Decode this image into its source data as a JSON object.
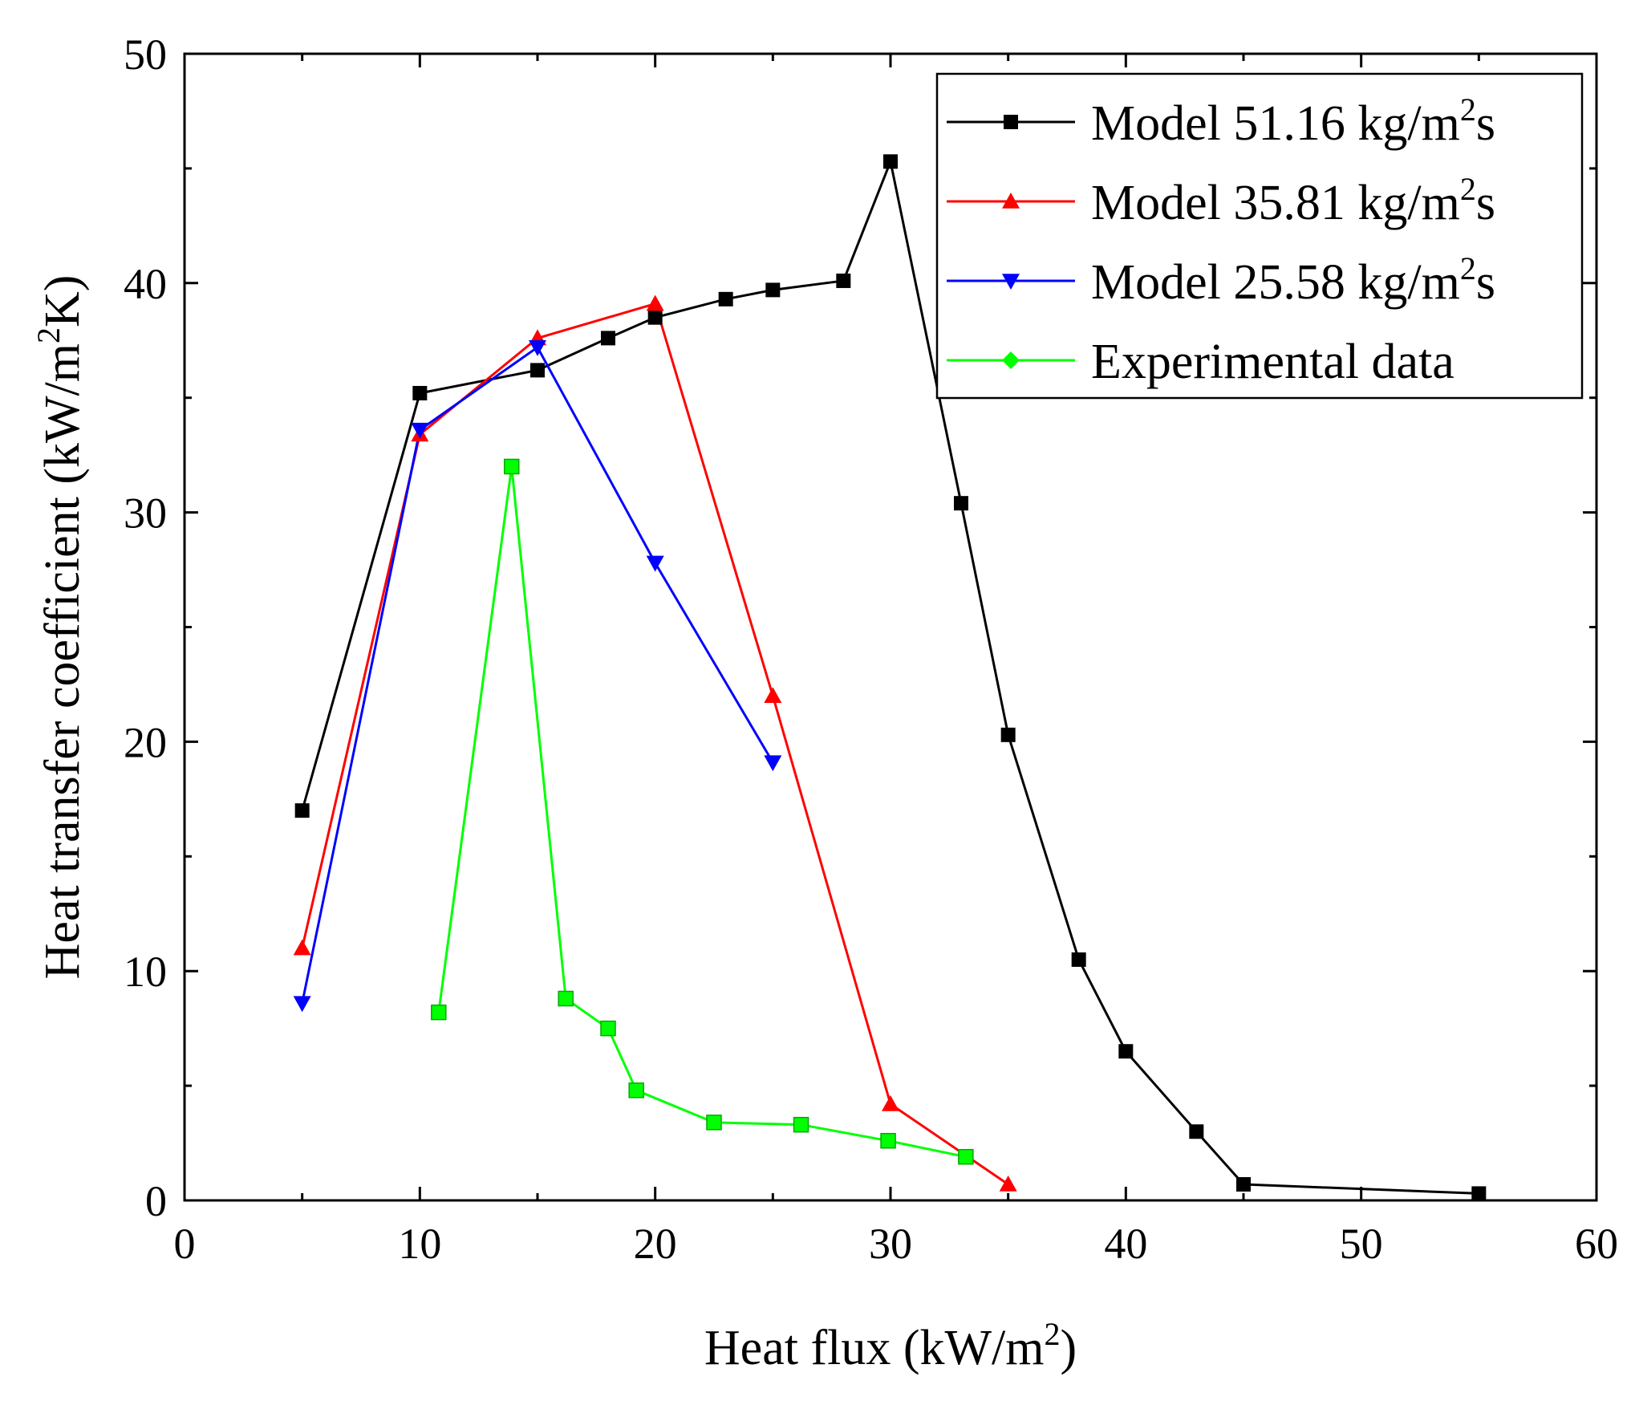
{
  "chart_data": {
    "type": "line",
    "title": "",
    "xlabel": "Heat flux (kW/m²)",
    "ylabel": "Heat transfer coefficient (kW/m²K)",
    "xlabel_parts": {
      "main": "Heat flux (kW/m",
      "sup": "2",
      "end": ")"
    },
    "ylabel_parts": {
      "main": "Heat transfer coefficient (kW/m",
      "sup": "2",
      "end": "K)"
    },
    "xlim": [
      0,
      60
    ],
    "ylim": [
      0,
      50
    ],
    "x_ticks": [
      0,
      10,
      20,
      30,
      40,
      50,
      60
    ],
    "y_ticks": [
      0,
      10,
      20,
      30,
      40,
      50
    ],
    "x_tick_labels": [
      "0",
      "10",
      "20",
      "30",
      "40",
      "50",
      "60"
    ],
    "y_tick_labels": [
      "0",
      "10",
      "20",
      "30",
      "40",
      "50"
    ],
    "grid": false,
    "legend_position": "top-right",
    "series": [
      {
        "name": "Model 51.16 kg/m²s",
        "label_main": "Model 51.16 kg/m",
        "label_sup": "2",
        "label_end": "s",
        "color": "#000000",
        "marker": "square",
        "x": [
          5,
          10,
          15,
          18,
          20,
          23,
          25,
          28,
          30,
          33,
          35,
          38,
          40,
          43,
          45,
          55
        ],
        "y": [
          17.0,
          35.2,
          36.2,
          37.6,
          38.5,
          39.3,
          39.7,
          40.1,
          45.3,
          30.4,
          20.3,
          10.5,
          6.5,
          3.0,
          0.7,
          0.3
        ]
      },
      {
        "name": "Model 35.81 kg/m²s",
        "label_main": "Model 35.81 kg/m",
        "label_sup": "2",
        "label_end": "s",
        "color": "#ff0000",
        "marker": "triangle-up",
        "x": [
          5,
          10,
          15,
          20,
          25,
          30,
          35
        ],
        "y": [
          11.0,
          33.4,
          37.6,
          39.1,
          22.0,
          4.2,
          0.7
        ]
      },
      {
        "name": "Model 25.58 kg/m²s",
        "label_main": "Model 25.58 kg/m",
        "label_sup": "2",
        "label_end": "s",
        "color": "#0000ff",
        "marker": "triangle-down",
        "x": [
          5,
          10,
          15,
          20,
          25
        ],
        "y": [
          8.6,
          33.6,
          37.2,
          27.8,
          19.1
        ]
      },
      {
        "name": "Experimental data",
        "label_main": "Experimental data",
        "label_sup": "",
        "label_end": "",
        "color": "#00ff00",
        "marker": "square",
        "legend_marker": "diamond",
        "x": [
          10.8,
          13.9,
          16.2,
          18.0,
          19.2,
          22.5,
          26.2,
          29.9,
          33.2
        ],
        "y": [
          8.2,
          32.0,
          8.8,
          7.5,
          4.8,
          3.4,
          3.3,
          2.6,
          1.9
        ]
      }
    ]
  }
}
